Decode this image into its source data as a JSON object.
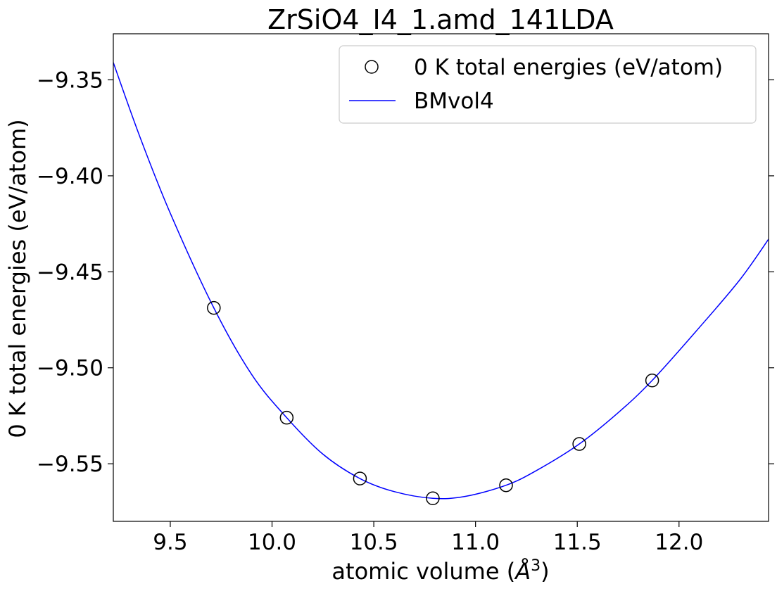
{
  "chart_data": {
    "type": "scatter",
    "title": "ZrSiO4_I4_1.amd_141LDA",
    "xlabel": "atomic volume (",
    "xlabel_unit": "Å",
    "xlabel_sup": "3",
    "xlabel_end": ")",
    "ylabel": "0 K total energies (eV/atom)",
    "xlim": [
      9.22,
      12.44
    ],
    "ylim": [
      -9.58,
      -9.326
    ],
    "x_ticks": [
      9.5,
      10.0,
      10.5,
      11.0,
      11.5,
      12.0
    ],
    "x_tick_labels": [
      "9.5",
      "10.0",
      "10.5",
      "11.0",
      "11.5",
      "12.0"
    ],
    "y_ticks": [
      -9.35,
      -9.4,
      -9.45,
      -9.5,
      -9.55
    ],
    "y_tick_labels": [
      "−9.35",
      "−9.40",
      "−9.45",
      "−9.50",
      "−9.55"
    ],
    "legend_position": "top-right",
    "grid": false,
    "series": [
      {
        "name": "0 K total energies (eV/atom)",
        "kind": "scatter",
        "marker": "open-circle",
        "color": "#000000",
        "x": [
          9.714,
          10.072,
          10.432,
          10.79,
          11.15,
          11.51,
          11.868
        ],
        "y": [
          -9.4688,
          -9.526,
          -9.5577,
          -9.568,
          -9.5612,
          -9.5397,
          -9.5066
        ]
      },
      {
        "name": "BMvol4",
        "kind": "line",
        "color": "#0000ff",
        "x": [
          9.22,
          9.35,
          9.5,
          9.714,
          9.9,
          10.072,
          10.25,
          10.432,
          10.6,
          10.79,
          10.95,
          11.15,
          11.3,
          11.51,
          11.7,
          11.868,
          12.1,
          12.3,
          12.44
        ],
        "y": [
          -9.341,
          -9.3795,
          -9.4195,
          -9.4688,
          -9.5035,
          -9.526,
          -9.545,
          -9.5577,
          -9.5645,
          -9.568,
          -9.567,
          -9.5612,
          -9.5535,
          -9.5397,
          -9.5235,
          -9.5066,
          -9.479,
          -9.454,
          -9.433
        ]
      }
    ]
  }
}
